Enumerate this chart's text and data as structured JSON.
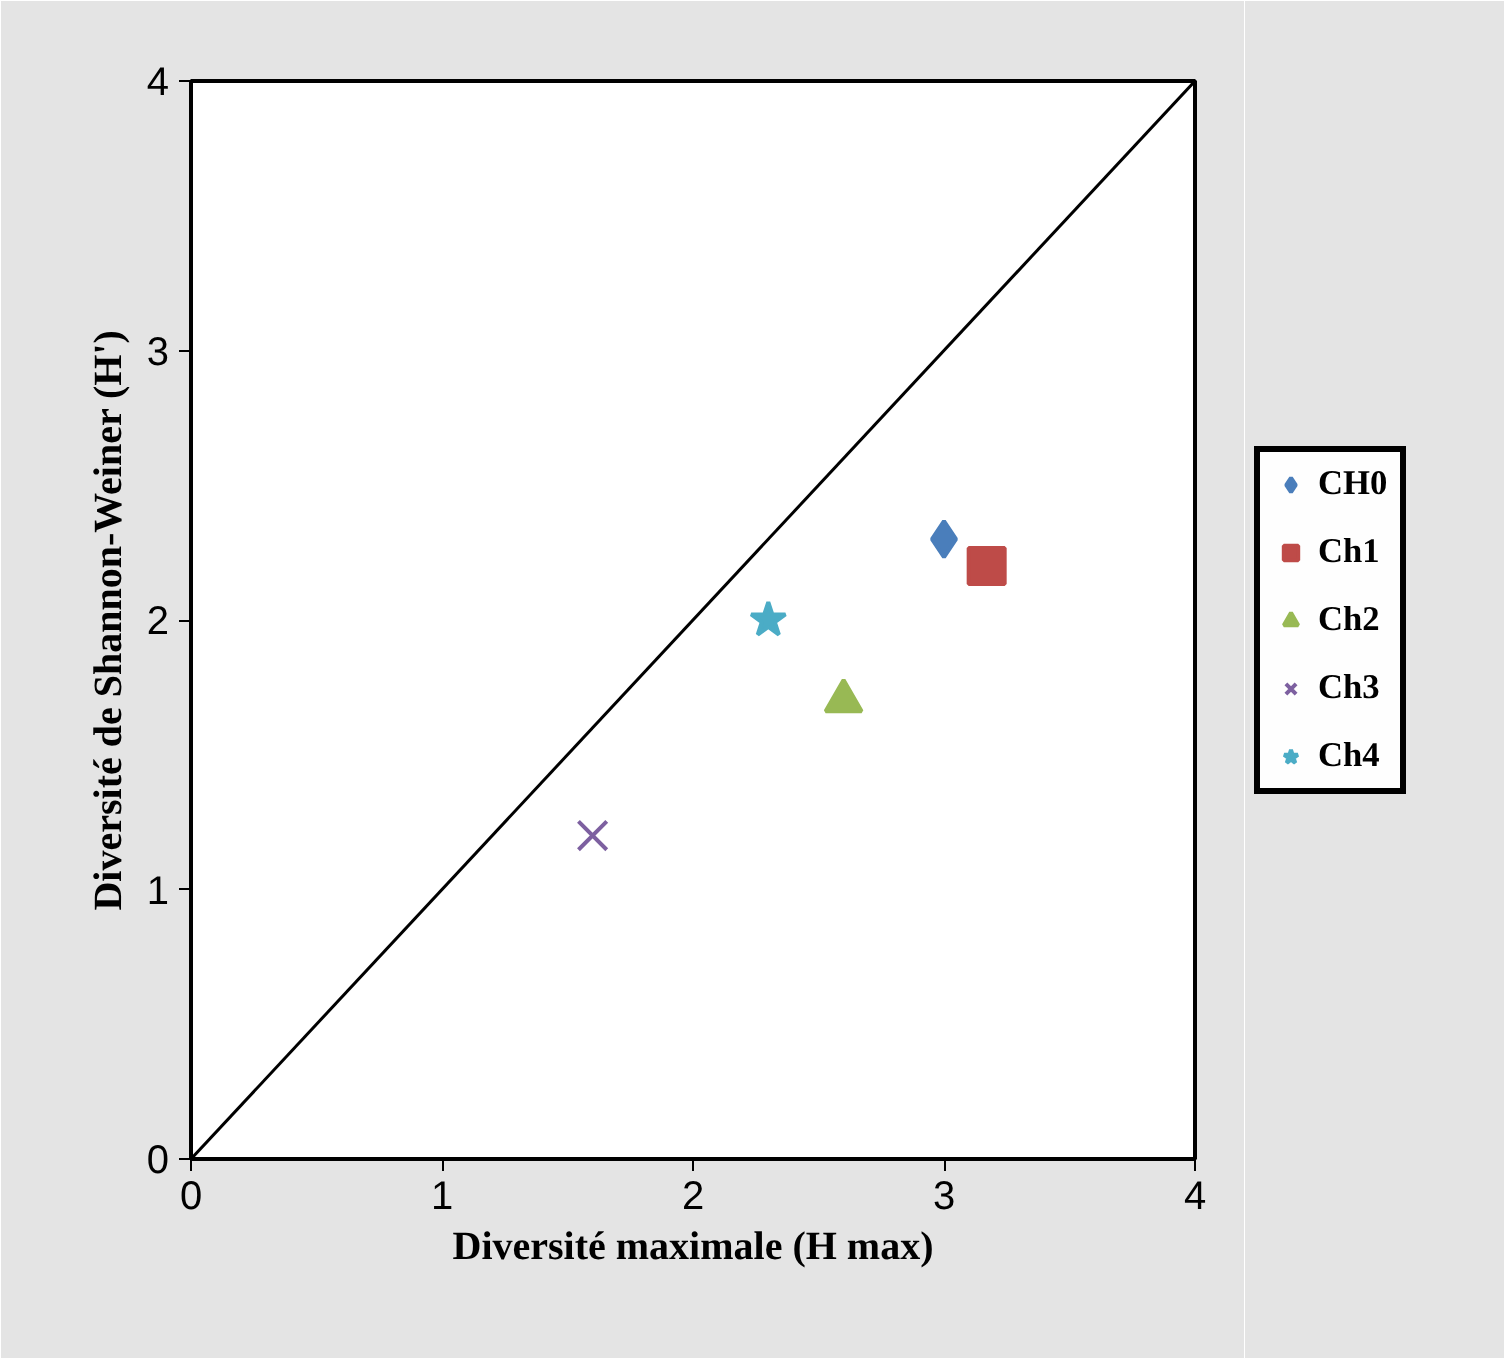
{
  "chart_data": {
    "type": "scatter",
    "xlabel": "Diversité maximale (H max)",
    "ylabel": "Diversité de Shannon-Weiner (H')",
    "xlim": [
      0,
      4
    ],
    "ylim": [
      0,
      4
    ],
    "xticks": [
      0,
      1,
      2,
      3,
      4
    ],
    "yticks": [
      0,
      1,
      2,
      3,
      4
    ],
    "grid": false,
    "legend": "right",
    "series": [
      {
        "name": "CH0",
        "color": "#4a7ebb",
        "marker": "diamond",
        "x": [
          3.0
        ],
        "values": [
          2.3
        ]
      },
      {
        "name": "Ch1",
        "color": "#be4b48",
        "marker": "square",
        "x": [
          3.17
        ],
        "values": [
          2.2
        ]
      },
      {
        "name": "Ch2",
        "color": "#98b954",
        "marker": "triangle",
        "x": [
          2.6
        ],
        "values": [
          1.7
        ]
      },
      {
        "name": "Ch3",
        "color": "#7d60a0",
        "marker": "cross",
        "x": [
          1.6
        ],
        "values": [
          1.2
        ]
      },
      {
        "name": "Ch4",
        "color": "#4bacc6",
        "marker": "star",
        "x": [
          2.3
        ],
        "values": [
          2.0
        ]
      },
      {
        "type": "line",
        "color": "#000000",
        "x": [
          0,
          4
        ],
        "values": [
          0,
          4
        ]
      }
    ]
  }
}
